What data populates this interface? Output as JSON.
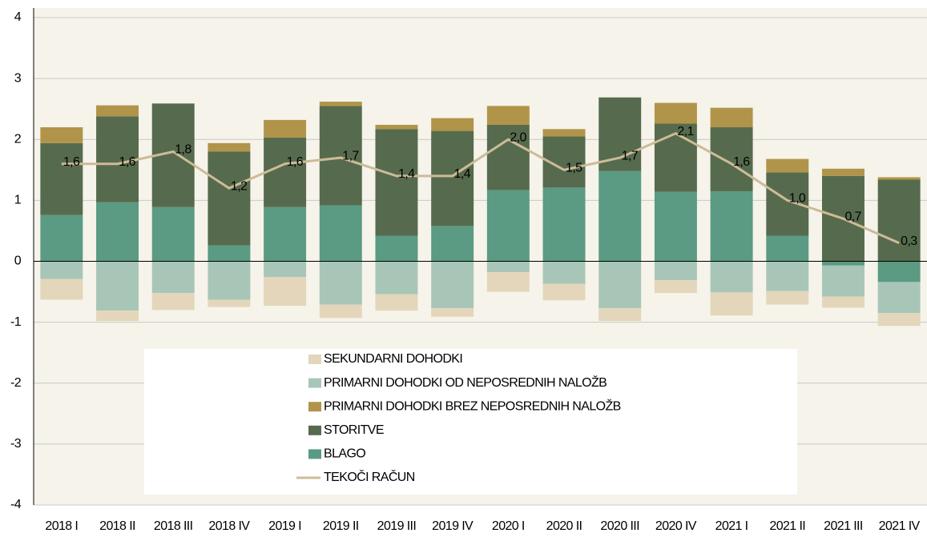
{
  "chart_data": {
    "type": "bar",
    "categories": [
      "2018 I",
      "2018 II",
      "2018 III",
      "2018 IV",
      "2019 I",
      "2019 II",
      "2019 III",
      "2019 IV",
      "2020 I",
      "2020 II",
      "2020 III",
      "2020 IV",
      "2021 I",
      "2021 II",
      "2021 III",
      "2021 IV"
    ],
    "ylim": [
      -4,
      4
    ],
    "yticks": [
      -4,
      -3,
      -2,
      -1,
      0,
      1,
      2,
      3,
      4
    ],
    "grid": true,
    "stacked": true,
    "series": [
      {
        "name": "SEKUNDARNI DOHODKI",
        "color": "#e3d6ba",
        "values": [
          -0.34,
          -0.17,
          -0.28,
          -0.12,
          -0.47,
          -0.22,
          -0.27,
          -0.14,
          -0.32,
          -0.27,
          -0.21,
          -0.21,
          -0.38,
          -0.22,
          -0.18,
          -0.21
        ]
      },
      {
        "name": "PRIMARNI DOHODKI OD NEPOSREDNIH NALOŽB",
        "color": "#a8c6b8",
        "values": [
          -0.29,
          -0.81,
          -0.52,
          -0.63,
          -0.26,
          -0.71,
          -0.54,
          -0.77,
          -0.18,
          -0.37,
          -0.77,
          -0.31,
          -0.51,
          -0.49,
          -0.51,
          -0.51
        ]
      },
      {
        "name": "PRIMARNI DOHODKI BREZ NEPOSREDNIH NALOŽB",
        "color": "#b09449",
        "values": [
          0.26,
          0.18,
          0.0,
          0.14,
          0.29,
          0.07,
          0.07,
          0.21,
          0.31,
          0.12,
          0.0,
          0.34,
          0.32,
          0.22,
          0.12,
          0.04
        ]
      },
      {
        "name": "STORITVE",
        "color": "#566b4d",
        "values": [
          1.18,
          1.41,
          1.7,
          1.54,
          1.14,
          1.63,
          1.75,
          1.56,
          1.07,
          0.84,
          1.21,
          1.12,
          1.05,
          1.04,
          1.4,
          1.34
        ]
      },
      {
        "name": "BLAGO",
        "color": "#5b9a83",
        "values": [
          0.76,
          0.97,
          0.89,
          0.26,
          0.89,
          0.92,
          0.42,
          0.58,
          1.17,
          1.21,
          1.48,
          1.14,
          1.15,
          0.42,
          -0.07,
          -0.34
        ]
      },
      {
        "name": "TEKOČI RAČUN",
        "type": "line",
        "color": "#cdbb98",
        "values": [
          1.6,
          1.6,
          1.8,
          1.2,
          1.6,
          1.7,
          1.4,
          1.4,
          2.0,
          1.5,
          1.7,
          2.1,
          1.6,
          1.0,
          0.7,
          0.3
        ],
        "value_labels": [
          "1,6",
          "1,6",
          "1,8",
          "1,2",
          "1,6",
          "1,7",
          "1,4",
          "1,4",
          "2,0",
          "1,5",
          "1,7",
          "2,1",
          "1,6",
          "1,0",
          "0,7",
          "0,3"
        ]
      }
    ]
  }
}
